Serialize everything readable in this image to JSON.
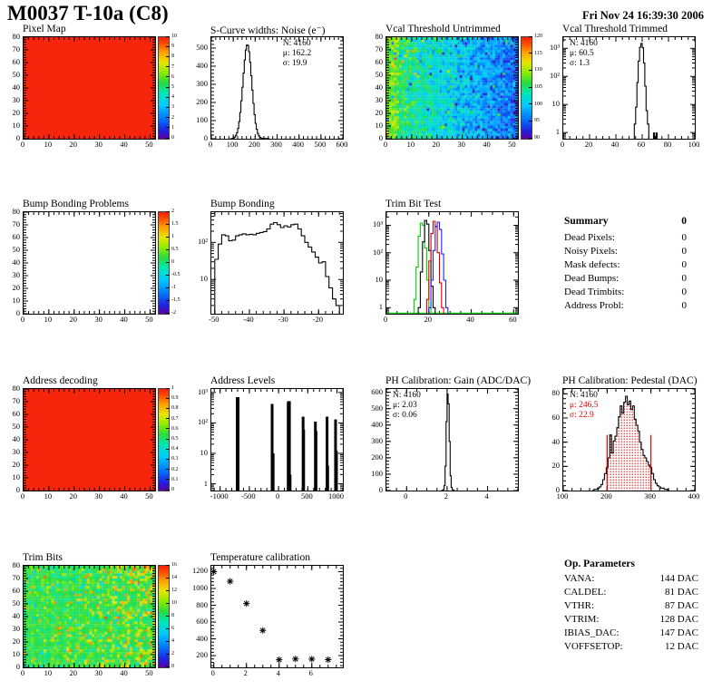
{
  "header": {
    "title": "M0037 T-10a (C8)",
    "date": "Fri Nov 24 16:39:30 2006"
  },
  "summary": {
    "title": "Summary",
    "total": "0",
    "rows": [
      {
        "label": "Dead Pixels:",
        "value": "0"
      },
      {
        "label": "Noisy Pixels:",
        "value": "0"
      },
      {
        "label": "Mask defects:",
        "value": "0"
      },
      {
        "label": "Dead Bumps:",
        "value": "0"
      },
      {
        "label": "Dead Trimbits:",
        "value": "0"
      },
      {
        "label": "Address Probl:",
        "value": "0"
      }
    ]
  },
  "op_parameters": {
    "title": "Op. Parameters",
    "rows": [
      {
        "label": "VANA:",
        "value": "144 DAC"
      },
      {
        "label": "CALDEL:",
        "value": "81 DAC"
      },
      {
        "label": "VTHR:",
        "value": "87 DAC"
      },
      {
        "label": "VTRIM:",
        "value": "128 DAC"
      },
      {
        "label": "IBIAS_DAC:",
        "value": "147 DAC"
      },
      {
        "label": "VOFFSETOP:",
        "value": "12 DAC"
      }
    ]
  },
  "colors": {
    "solid_map_red": "#f7250c",
    "stat_red": "#e00000",
    "trimbit_green": "#00cc00",
    "trimbit_black": "#000000",
    "trimbit_red": "#e00000",
    "trimbit_blue": "#2020f0"
  },
  "chart_data": [
    {
      "id": "pixel_map",
      "type": "heatmap",
      "title": "Pixel Map",
      "xlim": [
        0,
        52
      ],
      "ylim": [
        0,
        80
      ],
      "xticks": [
        0,
        10,
        20,
        30,
        40,
        50
      ],
      "yticks": [
        0,
        10,
        20,
        30,
        40,
        50,
        60,
        70,
        80
      ],
      "x_minor": 2,
      "y_minor": 2,
      "fill": "solid",
      "fill_color": "#f7250c",
      "colorbar": {
        "labels": [
          "10",
          "9",
          "8",
          "7",
          "6",
          "5",
          "4",
          "3",
          "2",
          "1",
          "0"
        ]
      }
    },
    {
      "id": "scurve_noise",
      "type": "histogram",
      "title": "S-Curve widths: Noise (e⁻)",
      "stats_pos": "tr",
      "stats": [
        {
          "text": "N: 4160"
        },
        {
          "text": "μ: 162.2"
        },
        {
          "text": "σ: 19.9"
        }
      ],
      "xlim": [
        0,
        600
      ],
      "ylim": [
        0,
        560
      ],
      "xticks": [
        0,
        100,
        200,
        300,
        400,
        500,
        600
      ],
      "yticks": [
        0,
        100,
        200,
        300,
        400,
        500
      ],
      "x_minor": 20,
      "y_minor": 20,
      "bins": {
        "start": 85,
        "width": 5,
        "values": [
          0,
          0,
          2,
          4,
          9,
          18,
          33,
          57,
          94,
          145,
          209,
          284,
          362,
          434,
          489,
          517,
          514,
          480,
          421,
          347,
          268,
          195,
          133,
          85,
          52,
          29,
          16,
          8,
          4,
          2,
          1,
          1,
          0,
          1,
          1,
          0
        ]
      }
    },
    {
      "id": "vcal_untrimmed",
      "type": "heatmap",
      "title": "Vcal Threshold Untrimmed",
      "xlim": [
        0,
        52
      ],
      "ylim": [
        0,
        80
      ],
      "xticks": [
        0,
        10,
        20,
        30,
        40,
        50
      ],
      "yticks": [
        0,
        10,
        20,
        30,
        40,
        50,
        60,
        70,
        80
      ],
      "x_minor": 2,
      "y_minor": 2,
      "fill": "noise-vcal",
      "value_range": [
        87,
        124
      ],
      "colorbar": {
        "labels": [
          "120",
          "115",
          "110",
          "105",
          "100",
          "95",
          "90"
        ]
      }
    },
    {
      "id": "vcal_trimmed",
      "type": "histogram",
      "log_y": true,
      "title": "Vcal Threshold Trimmed",
      "stats_pos": "tl",
      "stats": [
        {
          "text": "N: 4160"
        },
        {
          "text": "μ: 60.5"
        },
        {
          "text": "σ: 1.3"
        }
      ],
      "xlim": [
        0,
        100
      ],
      "ylim": [
        0.6,
        2500
      ],
      "xticks": [
        0,
        20,
        40,
        60,
        80,
        100
      ],
      "x_minor": 5,
      "yticks": [
        [
          1,
          "1"
        ],
        [
          10,
          "10"
        ],
        [
          100,
          "10²"
        ],
        [
          1000,
          "10³"
        ]
      ],
      "bins": {
        "start": 54,
        "width": 1,
        "values": [
          2,
          8,
          60,
          350,
          1100,
          1500,
          1050,
          300,
          45,
          6,
          2
        ]
      },
      "extra_spikes": [
        [
          69,
          1
        ],
        [
          71,
          1
        ]
      ]
    },
    {
      "id": "bb_problems",
      "type": "heatmap",
      "title": "Bump Bonding Problems",
      "xlim": [
        0,
        52
      ],
      "ylim": [
        0,
        80
      ],
      "xticks": [
        0,
        10,
        20,
        30,
        40,
        50
      ],
      "yticks": [
        0,
        10,
        20,
        30,
        40,
        50,
        60,
        70,
        80
      ],
      "x_minor": 2,
      "y_minor": 2,
      "fill": "white",
      "colorbar": {
        "labels": [
          "2",
          "1.5",
          "1",
          "0.5",
          "0",
          "-0.5",
          "-1",
          "-1.5",
          "-2"
        ]
      }
    },
    {
      "id": "bump_bonding",
      "type": "histogram",
      "log_y": true,
      "title": "Bump Bonding",
      "xlim": [
        -51,
        -13
      ],
      "ylim": [
        1.2,
        650
      ],
      "xticks": [
        -50,
        -40,
        -30,
        -20
      ],
      "x_minor": 2,
      "yticks": [
        [
          10,
          "10"
        ],
        [
          100,
          "10²"
        ]
      ],
      "bins": {
        "start": -50,
        "width": 1,
        "values": [
          35,
          90,
          160,
          150,
          110,
          115,
          150,
          160,
          170,
          160,
          165,
          160,
          175,
          185,
          195,
          230,
          310,
          340,
          300,
          250,
          280,
          260,
          300,
          310,
          230,
          150,
          100,
          75,
          55,
          40,
          28,
          30,
          12,
          6,
          3,
          2
        ]
      }
    },
    {
      "id": "trim_bit_test",
      "type": "multi-histogram",
      "log_y": true,
      "title": "Trim Bit Test",
      "xlim": [
        0,
        62
      ],
      "ylim": [
        0.6,
        3000
      ],
      "xticks": [
        0,
        20,
        40,
        60
      ],
      "x_minor": 5,
      "yticks": [
        [
          1,
          "1"
        ],
        [
          10,
          "10"
        ],
        [
          100,
          "10²"
        ],
        [
          1000,
          "10³"
        ]
      ],
      "baseline_color": "#00cc00",
      "series": [
        {
          "color": "#00cc00",
          "start": 13,
          "width": 1,
          "values": [
            2,
            30,
            400,
            1200,
            1000,
            150,
            10,
            1
          ]
        },
        {
          "color": "#000000",
          "start": 15,
          "width": 1,
          "values": [
            1,
            20,
            250,
            1500,
            1100,
            120,
            6,
            1
          ]
        },
        {
          "color": "#e00000",
          "start": 19,
          "width": 1,
          "values": [
            2,
            50,
            500,
            1400,
            900,
            100,
            8,
            1
          ]
        },
        {
          "color": "#2020f0",
          "start": 20,
          "width": 1,
          "values": [
            1,
            10,
            120,
            900,
            1300,
            700,
            90,
            10,
            1
          ]
        }
      ]
    },
    {
      "id": "address_decoding",
      "type": "heatmap",
      "title": "Address decoding",
      "xlim": [
        0,
        52
      ],
      "ylim": [
        0,
        80
      ],
      "xticks": [
        0,
        10,
        20,
        30,
        40,
        50
      ],
      "yticks": [
        0,
        10,
        20,
        30,
        40,
        50,
        60,
        70,
        80
      ],
      "x_minor": 2,
      "y_minor": 2,
      "fill": "solid",
      "fill_color": "#f7250c",
      "colorbar": {
        "labels": [
          "1",
          "0.9",
          "0.8",
          "0.7",
          "0.6",
          "0.5",
          "0.4",
          "0.3",
          "0.2",
          "0.1",
          "0"
        ]
      }
    },
    {
      "id": "address_levels",
      "type": "spikes",
      "log_y": true,
      "title": "Address Levels",
      "xlim": [
        -1150,
        1100
      ],
      "ylim": [
        0.6,
        1300
      ],
      "xticks": [
        -1000,
        -500,
        0,
        500,
        1000
      ],
      "x_minor": 100,
      "yticks": [
        [
          1,
          "1"
        ],
        [
          10,
          "10"
        ],
        [
          100,
          "10²"
        ],
        [
          1000,
          "10³"
        ]
      ],
      "spikes": [
        [
          -700,
          700,
          4
        ],
        [
          -110,
          420,
          3
        ],
        [
          -85,
          10,
          2
        ],
        [
          165,
          480,
          3
        ],
        [
          178,
          520,
          4
        ],
        [
          190,
          300,
          2
        ],
        [
          205,
          2,
          2
        ],
        [
          420,
          160,
          3
        ],
        [
          437,
          60,
          2
        ],
        [
          630,
          110,
          3
        ],
        [
          648,
          55,
          2
        ],
        [
          830,
          160,
          3
        ],
        [
          848,
          4,
          2
        ],
        [
          975,
          130,
          3
        ],
        [
          998,
          12,
          2
        ]
      ]
    },
    {
      "id": "ph_gain",
      "type": "histogram",
      "title": "PH Calibration: Gain (ADC/DAC)",
      "stats_pos": "tl",
      "stats": [
        {
          "text": "N: 4160"
        },
        {
          "text": "μ: 2.03"
        },
        {
          "text": "σ: 0.06"
        }
      ],
      "xlim": [
        -1,
        5.5
      ],
      "ylim": [
        0,
        620
      ],
      "xticks": [
        0,
        2,
        4
      ],
      "x_minor": 0.5,
      "yticks": [
        0,
        100,
        200,
        300,
        400,
        500,
        600
      ],
      "y_minor": 20,
      "bins": {
        "start": 1.75,
        "width": 0.05,
        "values": [
          2,
          5,
          30,
          150,
          420,
          590,
          530,
          300,
          90,
          20,
          5,
          2
        ]
      }
    },
    {
      "id": "ph_pedestal",
      "type": "histogram",
      "title": "PH Calibration: Pedestal (DAC)",
      "stats_pos": "tl",
      "stats": [
        {
          "text": "N: 4160"
        },
        {
          "text": "μ: 246.5",
          "color": "#e00000"
        },
        {
          "text": "σ: 22.9",
          "color": "#e00000"
        }
      ],
      "xlim": [
        100,
        400
      ],
      "ylim": [
        0,
        84
      ],
      "xticks": [
        100,
        200,
        300,
        400
      ],
      "x_minor": 20,
      "yticks": [
        0,
        20,
        40,
        60,
        80
      ],
      "y_minor": 4,
      "red_fill_range": [
        200,
        300
      ],
      "red_lines": [
        [
          200,
          46
        ],
        [
          300,
          46
        ]
      ],
      "bins": {
        "start": 166,
        "width": 4,
        "values": [
          0,
          1,
          1,
          2,
          3,
          5,
          9,
          14,
          19,
          27,
          46,
          31,
          41,
          45,
          52,
          61,
          70,
          64,
          73,
          78,
          71,
          74,
          67,
          70,
          59,
          54,
          49,
          40,
          34,
          29,
          27,
          24,
          21,
          19,
          14,
          9,
          6,
          4,
          3,
          2,
          2,
          1,
          1,
          0
        ]
      }
    },
    {
      "id": "trim_bits",
      "type": "heatmap",
      "title": "Trim Bits",
      "xlim": [
        0,
        52
      ],
      "ylim": [
        0,
        80
      ],
      "xticks": [
        0,
        10,
        20,
        30,
        40,
        50
      ],
      "yticks": [
        0,
        10,
        20,
        30,
        40,
        50,
        60,
        70,
        80
      ],
      "x_minor": 2,
      "y_minor": 2,
      "fill": "noise-trim",
      "value_range": [
        0,
        16
      ],
      "colorbar": {
        "labels": [
          "16",
          "14",
          "12",
          "10",
          "8",
          "6",
          "4",
          "2",
          "0"
        ]
      }
    },
    {
      "id": "temp_cal",
      "type": "scatter",
      "title": "Temperature calibration",
      "marker": "asterisk",
      "xlim": [
        -0.15,
        7.9
      ],
      "ylim": [
        60,
        1270
      ],
      "xticks": [
        0,
        2,
        4,
        6
      ],
      "x_minor": 0.5,
      "yticks": [
        200,
        400,
        600,
        800,
        1000,
        1200
      ],
      "y_minor": 40,
      "points": [
        [
          0,
          1200
        ],
        [
          1,
          1085
        ],
        [
          2,
          820
        ],
        [
          3,
          500
        ],
        [
          4,
          150
        ],
        [
          5,
          160
        ],
        [
          6,
          158
        ],
        [
          7,
          152
        ]
      ]
    }
  ]
}
